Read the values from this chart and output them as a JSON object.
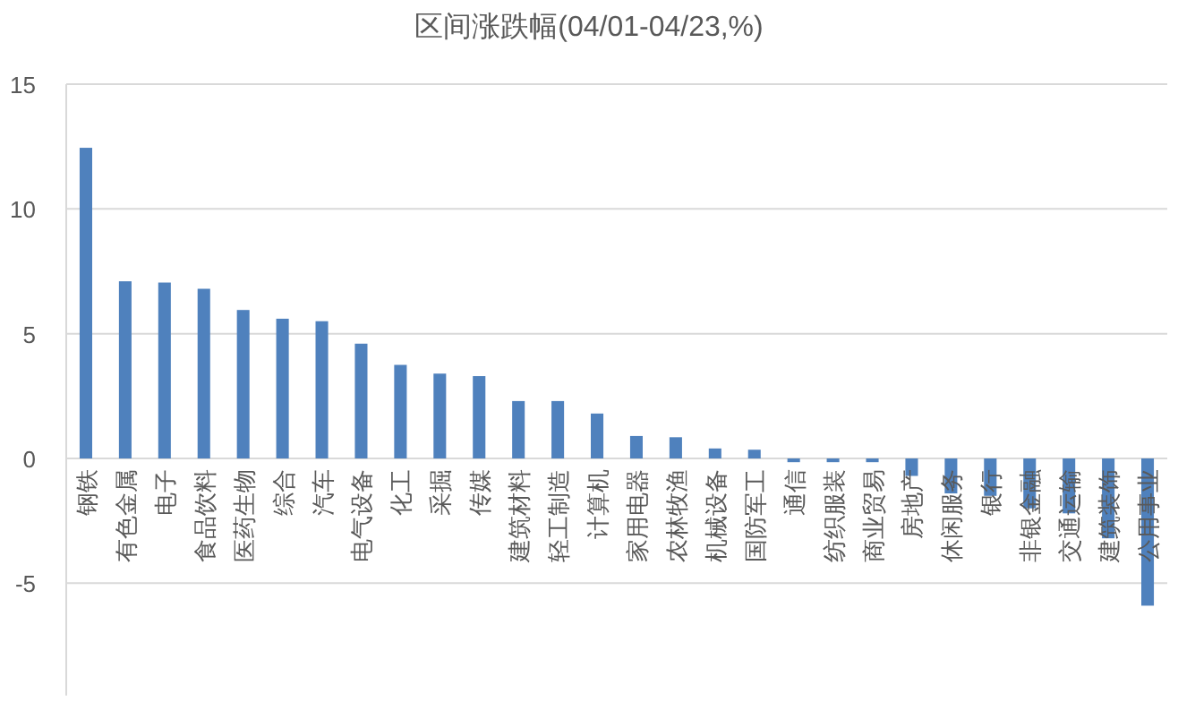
{
  "chart_data": {
    "type": "bar",
    "title": "区间涨跌幅(04/01-04/23,%)",
    "categories": [
      "钢铁",
      "有色金属",
      "电子",
      "食品饮料",
      "医药生物",
      "综合",
      "汽车",
      "电气设备",
      "化工",
      "采掘",
      "传媒",
      "建筑材料",
      "轻工制造",
      "计算机",
      "家用电器",
      "农林牧渔",
      "机械设备",
      "国防军工",
      "通信",
      "纺织服装",
      "商业贸易",
      "房地产",
      "休闲服务",
      "银行",
      "非银金融",
      "交通运输",
      "建筑装饰",
      "公用事业"
    ],
    "values": [
      12.45,
      7.1,
      7.05,
      6.8,
      5.95,
      5.6,
      5.5,
      4.6,
      3.75,
      3.4,
      3.3,
      2.3,
      2.3,
      1.8,
      0.9,
      0.85,
      0.4,
      0.35,
      -0.15,
      -0.15,
      -0.15,
      -0.7,
      -1.4,
      -1.5,
      -2.0,
      -2.2,
      -3.2,
      -5.9
    ],
    "color": "#4f81bd",
    "ylim": [
      -9.5,
      15
    ],
    "yticks": [
      -5,
      0,
      5,
      10,
      15
    ],
    "grid": "y"
  }
}
